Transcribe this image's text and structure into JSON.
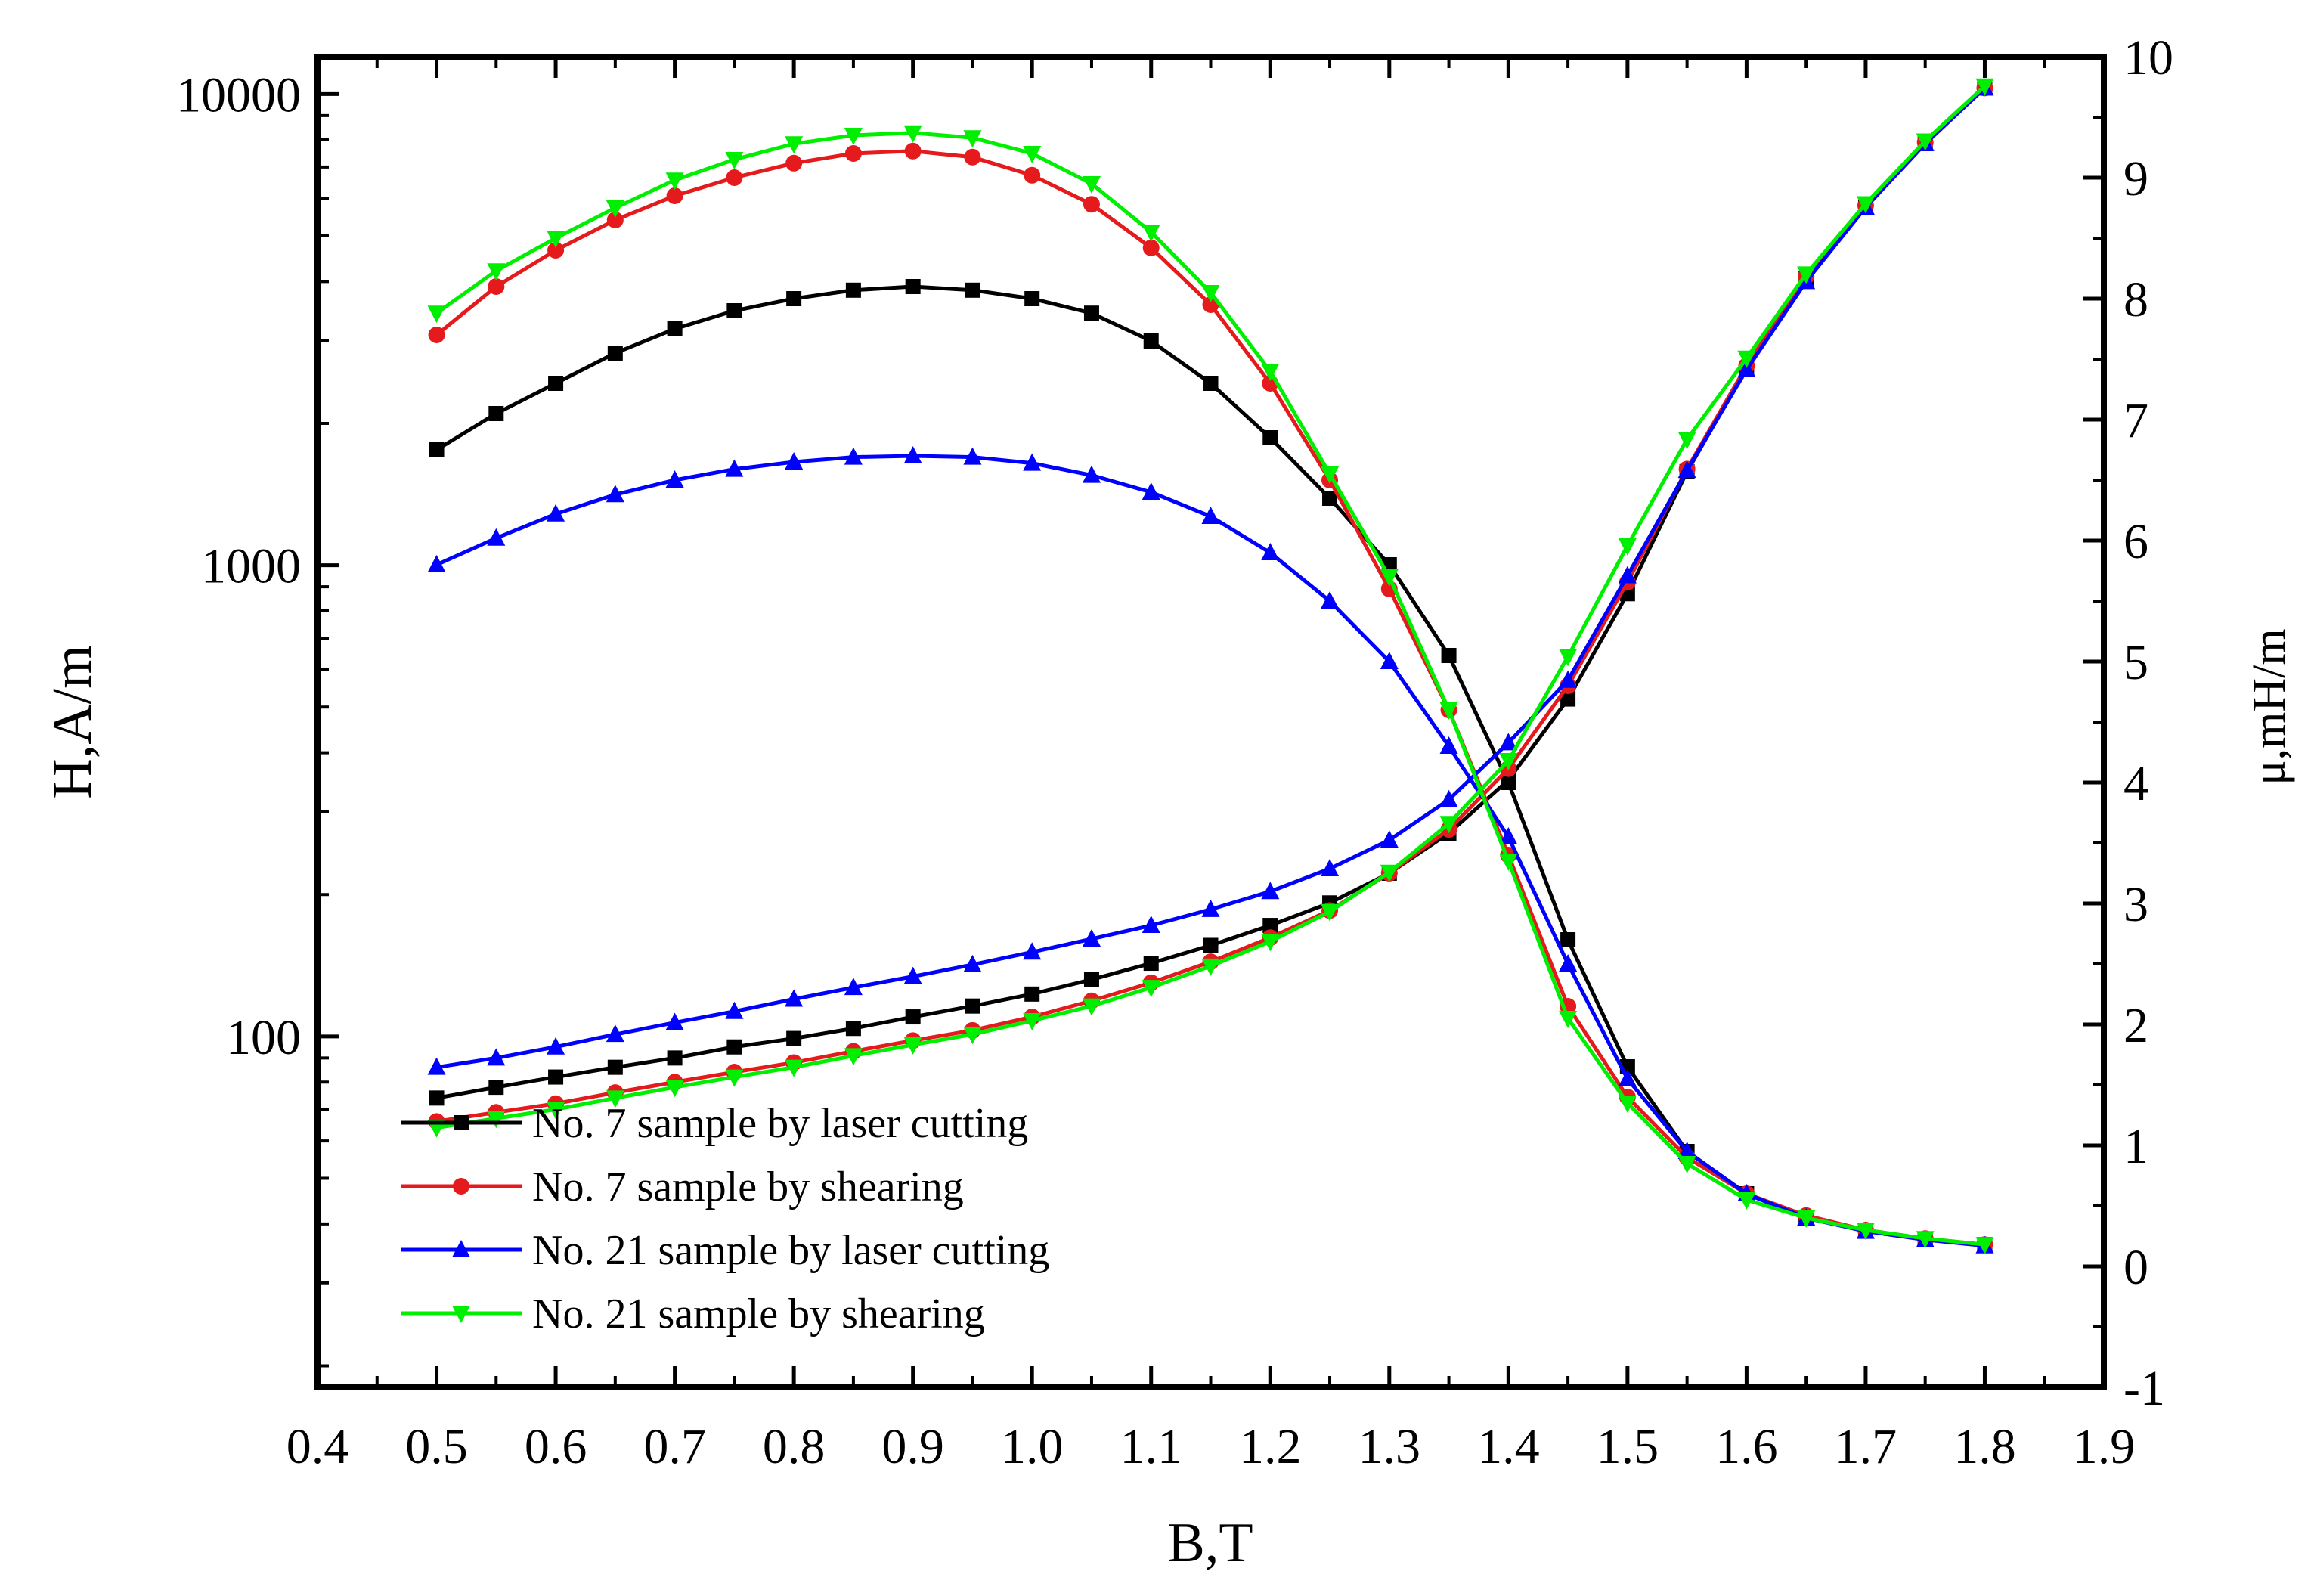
{
  "chart_data": {
    "type": "line",
    "title": "",
    "xlabel": "B,T",
    "ylabel_left": "H,A/m",
    "ylabel_right": "μ,mH/m",
    "x_ticks": [
      "0.4",
      "0.5",
      "0.6",
      "0.7",
      "0.8",
      "0.9",
      "1.0",
      "1.1",
      "1.2",
      "1.3",
      "1.4",
      "1.5",
      "1.6",
      "1.7",
      "1.8",
      "1.9"
    ],
    "x_range": [
      0.4,
      1.9
    ],
    "y_left_ticks": [
      "100",
      "1000",
      "10000"
    ],
    "y_left_scale": "log",
    "y_left_range": [
      18,
      12000
    ],
    "y_right_ticks": [
      "-1",
      "0",
      "1",
      "2",
      "3",
      "4",
      "5",
      "6",
      "7",
      "8",
      "9",
      "10"
    ],
    "y_right_range": [
      -1,
      10
    ],
    "legend_position": "bottom-left",
    "x": [
      0.5,
      0.55,
      0.6,
      0.65,
      0.7,
      0.75,
      0.8,
      0.85,
      0.9,
      0.95,
      1.0,
      1.05,
      1.1,
      1.15,
      1.2,
      1.25,
      1.3,
      1.35,
      1.4,
      1.45,
      1.5,
      1.55,
      1.6,
      1.65,
      1.7,
      1.75,
      1.8
    ],
    "series": [
      {
        "name": "No. 7 sample by laser cutting",
        "color": "#000000",
        "marker": "square",
        "H": [
          74,
          78,
          82,
          86,
          90,
          95,
          99,
          104,
          110,
          116,
          123,
          132,
          143,
          156,
          172,
          192,
          222,
          270,
          350,
          520,
          870,
          1580,
          2620,
          4050,
          5750,
          7850,
          10300
        ],
        "mu": [
          6.75,
          7.05,
          7.3,
          7.55,
          7.75,
          7.9,
          8.0,
          8.07,
          8.1,
          8.07,
          8.0,
          7.88,
          7.65,
          7.3,
          6.85,
          6.35,
          5.8,
          5.05,
          4.0,
          2.7,
          1.65,
          0.95,
          0.6,
          0.4,
          0.3,
          0.22,
          0.18
        ]
      },
      {
        "name": "No. 7 sample by shearing",
        "color": "#e41a1c",
        "marker": "circle",
        "H": [
          66,
          69,
          72,
          76,
          80,
          84,
          88,
          93,
          98,
          103,
          110,
          119,
          130,
          144,
          162,
          185,
          222,
          275,
          370,
          555,
          920,
          1600,
          2650,
          4100,
          5800,
          7900,
          10300
        ],
        "mu": [
          7.7,
          8.1,
          8.4,
          8.65,
          8.85,
          9.0,
          9.12,
          9.2,
          9.22,
          9.17,
          9.02,
          8.78,
          8.42,
          7.95,
          7.3,
          6.5,
          5.6,
          4.6,
          3.4,
          2.15,
          1.4,
          0.9,
          0.6,
          0.42,
          0.3,
          0.23,
          0.18
        ]
      },
      {
        "name": "No. 21 sample by laser cutting",
        "color": "#0000ff",
        "marker": "triangle-up",
        "H": [
          86,
          90,
          95,
          101,
          107,
          113,
          120,
          127,
          134,
          142,
          151,
          161,
          172,
          186,
          203,
          227,
          261,
          318,
          420,
          570,
          950,
          1590,
          2600,
          4000,
          5750,
          7850,
          10300
        ],
        "mu": [
          5.8,
          6.02,
          6.22,
          6.38,
          6.5,
          6.59,
          6.65,
          6.69,
          6.7,
          6.69,
          6.64,
          6.54,
          6.4,
          6.2,
          5.9,
          5.5,
          5.0,
          4.3,
          3.55,
          2.5,
          1.55,
          0.95,
          0.6,
          0.4,
          0.29,
          0.22,
          0.17
        ]
      },
      {
        "name": "No. 21 sample by shearing",
        "color": "#00ee00",
        "marker": "triangle-down",
        "H": [
          64,
          67,
          70,
          74,
          78,
          82,
          86,
          91,
          96,
          101,
          108,
          116,
          127,
          141,
          159,
          184,
          223,
          283,
          385,
          640,
          1100,
          1850,
          2750,
          4150,
          5850,
          7950,
          10400
        ],
        "mu": [
          7.88,
          8.23,
          8.5,
          8.75,
          8.98,
          9.15,
          9.28,
          9.35,
          9.37,
          9.33,
          9.2,
          8.95,
          8.55,
          8.05,
          7.4,
          6.55,
          5.7,
          4.6,
          3.35,
          2.05,
          1.35,
          0.85,
          0.55,
          0.4,
          0.3,
          0.23,
          0.18
        ]
      }
    ]
  }
}
